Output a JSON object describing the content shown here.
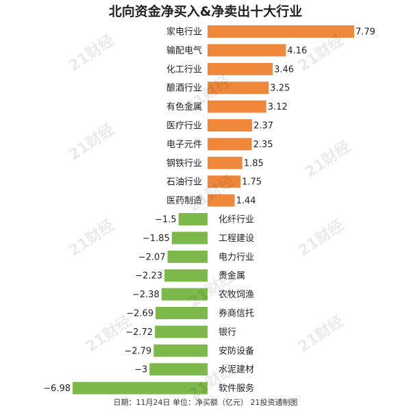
{
  "chart_data": {
    "type": "bar",
    "orientation": "horizontal",
    "title": "北向资金净买入&净卖出十大行业",
    "categories": [
      "家电行业",
      "输配电气",
      "化工行业",
      "酿酒行业",
      "有色金属",
      "医疗行业",
      "电子元件",
      "钢铁行业",
      "石油行业",
      "医药制造",
      "化纤行业",
      "工程建设",
      "电力行业",
      "贵金属",
      "农牧饲渔",
      "券商信托",
      "银行",
      "安防设备",
      "水泥建材",
      "软件服务"
    ],
    "values": [
      7.79,
      4.16,
      3.46,
      3.25,
      3.12,
      2.37,
      2.35,
      1.85,
      1.75,
      1.44,
      -1.5,
      -1.85,
      -2.07,
      -2.23,
      -2.38,
      -2.69,
      -2.72,
      -2.79,
      -3,
      -6.98
    ],
    "value_labels": [
      "7.79",
      "4.16",
      "3.46",
      "3.25",
      "3.12",
      "2.37",
      "2.35",
      "1.85",
      "1.75",
      "1.44",
      "−1.5",
      "−1.85",
      "−2.07",
      "−2.23",
      "−2.38",
      "−2.69",
      "−2.72",
      "−2.79",
      "−3",
      "−6.98"
    ],
    "xlim": [
      -6.98,
      7.79
    ],
    "colors": {
      "positive": "#F0883C",
      "negative": "#7DB94A"
    },
    "grid": false,
    "legend": "none"
  },
  "footer": "日期：11月24日 单位：净买额（亿元） 21投资通制图",
  "watermark": "21财经"
}
